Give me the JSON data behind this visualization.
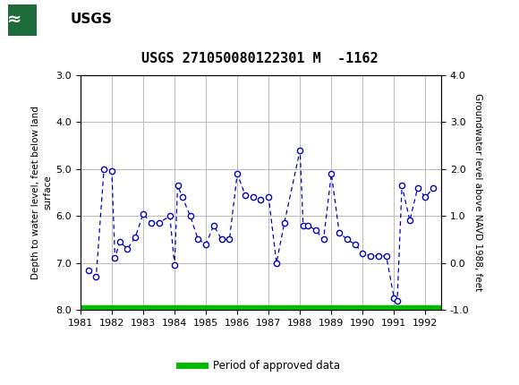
{
  "title": "USGS 271050080122301 M  -1162",
  "ylabel_left": "Depth to water level, feet below land\nsurface",
  "ylabel_right": "Groundwater level above NAVD 1988, feet",
  "ylim_left_top": 3.0,
  "ylim_left_bottom": 8.0,
  "ylim_right_top": 4.0,
  "ylim_right_bottom": -1.0,
  "xlim": [
    1981.0,
    1992.5
  ],
  "xticks": [
    1981,
    1982,
    1983,
    1984,
    1985,
    1986,
    1987,
    1988,
    1989,
    1990,
    1991,
    1992
  ],
  "yticks_left": [
    3.0,
    4.0,
    5.0,
    6.0,
    7.0,
    8.0
  ],
  "yticks_right": [
    4.0,
    3.0,
    2.0,
    1.0,
    0.0,
    -1.0
  ],
  "data_x": [
    1981.25,
    1981.5,
    1981.75,
    1982.0,
    1982.1,
    1982.25,
    1982.5,
    1982.75,
    1983.0,
    1983.25,
    1983.5,
    1983.85,
    1984.0,
    1984.1,
    1984.25,
    1984.5,
    1984.75,
    1985.0,
    1985.25,
    1985.5,
    1985.75,
    1986.0,
    1986.25,
    1986.5,
    1986.75,
    1987.0,
    1987.25,
    1987.5,
    1988.0,
    1988.1,
    1988.25,
    1988.5,
    1988.75,
    1989.0,
    1989.25,
    1989.5,
    1989.75,
    1990.0,
    1990.25,
    1990.5,
    1990.75,
    1991.0,
    1991.1,
    1991.25,
    1991.5,
    1991.75,
    1992.0,
    1992.25
  ],
  "data_y": [
    7.15,
    7.3,
    5.0,
    5.05,
    6.9,
    6.55,
    6.7,
    6.45,
    5.95,
    6.15,
    6.15,
    6.0,
    7.05,
    5.35,
    5.6,
    6.0,
    6.5,
    6.6,
    6.2,
    6.5,
    6.5,
    5.1,
    5.55,
    5.6,
    5.65,
    5.6,
    7.0,
    6.15,
    4.6,
    6.2,
    6.2,
    6.3,
    6.5,
    5.1,
    6.35,
    6.5,
    6.6,
    6.8,
    6.85,
    6.85,
    6.85,
    7.75,
    7.8,
    5.35,
    6.1,
    5.4,
    5.6,
    5.4
  ],
  "line_color": "#0000bb",
  "marker_facecolor": "white",
  "marker_edgecolor": "#0000bb",
  "grid_color": "#bbbbbb",
  "header_bg_color": "#1e6b3c",
  "legend_line_color": "#00bb00",
  "legend_label": "Period of approved data",
  "approved_bar_x_start": 1981.0,
  "approved_bar_x_end": 1992.5
}
